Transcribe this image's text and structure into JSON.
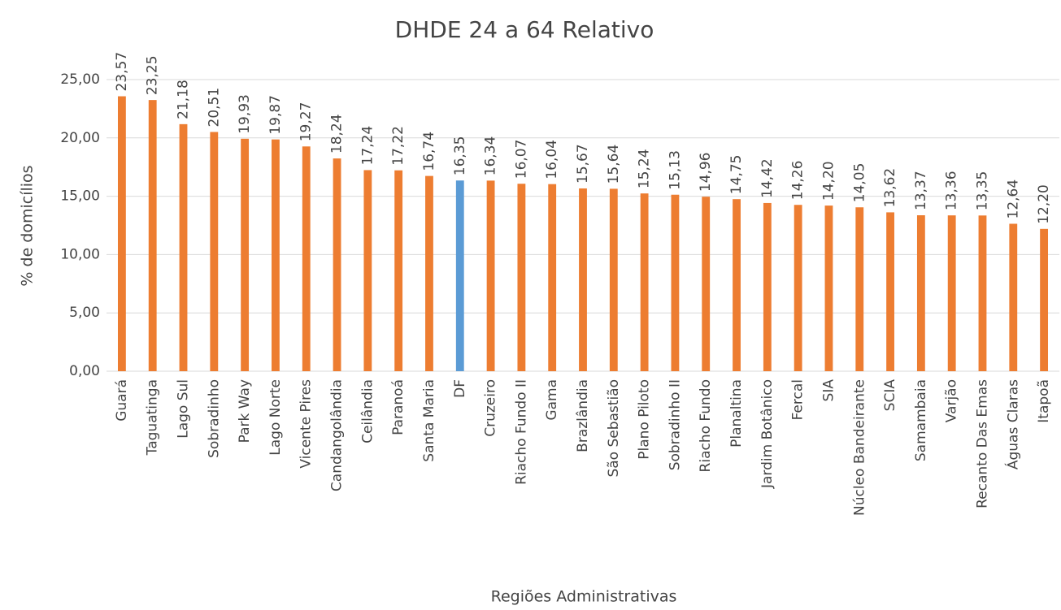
{
  "chart_data": {
    "type": "bar",
    "title": "DHDE 24 a 64 Relativo",
    "x_label": "Regiões Administrativas",
    "y_label": "% de domicílios",
    "categories": [
      "Guará",
      "Taguatinga",
      "Lago Sul",
      "Sobradinho",
      "Park Way",
      "Lago Norte",
      "Vicente Pires",
      "Candangolândia",
      "Ceilândia",
      "Paranoá",
      "Santa Maria",
      "DF",
      "Cruzeiro",
      "Riacho Fundo II",
      "Gama",
      "Brazlândia",
      "São Sebastião",
      "Plano Piloto",
      "Sobradinho II",
      "Riacho Fundo",
      "Planaltina",
      "Jardim Botânico",
      "Fercal",
      "SIA",
      "Núcleo Bandeirante",
      "SCIA",
      "Samambaia",
      "Varjão",
      "Recanto Das Emas",
      "Águas Claras",
      "Itapoã"
    ],
    "values": [
      23.57,
      23.25,
      21.18,
      20.51,
      19.93,
      19.87,
      19.27,
      18.24,
      17.24,
      17.22,
      16.74,
      16.35,
      16.34,
      16.07,
      16.04,
      15.67,
      15.64,
      15.24,
      15.13,
      14.96,
      14.75,
      14.42,
      14.26,
      14.2,
      14.05,
      13.62,
      13.37,
      13.36,
      13.35,
      12.64,
      12.2
    ],
    "value_labels": [
      "23,57",
      "23,25",
      "21,18",
      "20,51",
      "19,93",
      "19,87",
      "19,27",
      "18,24",
      "17,24",
      "17,22",
      "16,74",
      "16,35",
      "16,34",
      "16,07",
      "16,04",
      "15,67",
      "15,64",
      "15,24",
      "15,13",
      "14,96",
      "14,75",
      "14,42",
      "14,26",
      "14,20",
      "14,05",
      "13,62",
      "13,37",
      "13,36",
      "13,35",
      "12,64",
      "12,20"
    ],
    "colors": [
      "#ed7d31",
      "#ed7d31",
      "#ed7d31",
      "#ed7d31",
      "#ed7d31",
      "#ed7d31",
      "#ed7d31",
      "#ed7d31",
      "#ed7d31",
      "#ed7d31",
      "#ed7d31",
      "#5b9bd5",
      "#ed7d31",
      "#ed7d31",
      "#ed7d31",
      "#ed7d31",
      "#ed7d31",
      "#ed7d31",
      "#ed7d31",
      "#ed7d31",
      "#ed7d31",
      "#ed7d31",
      "#ed7d31",
      "#ed7d31",
      "#ed7d31",
      "#ed7d31",
      "#ed7d31",
      "#ed7d31",
      "#ed7d31",
      "#ed7d31",
      "#ed7d31"
    ],
    "ylim": [
      0,
      25
    ],
    "yticks": [
      {
        "value": 0,
        "label": "0,00"
      },
      {
        "value": 5,
        "label": "5,00"
      },
      {
        "value": 10,
        "label": "10,00"
      },
      {
        "value": 15,
        "label": "15,00"
      },
      {
        "value": 20,
        "label": "20,00"
      },
      {
        "value": 25,
        "label": "25,00"
      }
    ],
    "grid": true
  }
}
